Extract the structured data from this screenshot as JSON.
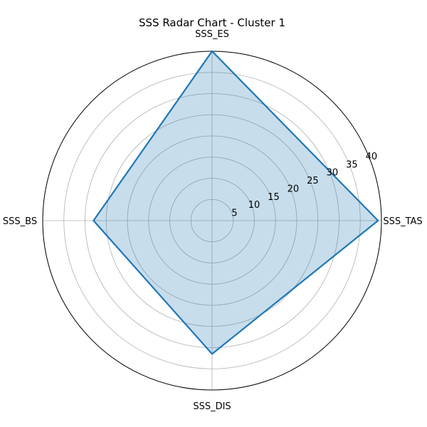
{
  "chart_data": {
    "type": "radar",
    "title": "SSS Radar Chart - Cluster 1",
    "categories": [
      "SSS_TAS",
      "SSS_ES",
      "SSS_BS",
      "SSS_DIS"
    ],
    "series": [
      {
        "values": [
          39.2,
          40.0,
          28.0,
          31.5
        ],
        "color": "#1f77b4"
      }
    ],
    "r_ticks": [
      5,
      10,
      15,
      20,
      25,
      30,
      35,
      40
    ],
    "rlim": [
      0,
      40
    ],
    "grid": true,
    "legend": "none"
  }
}
